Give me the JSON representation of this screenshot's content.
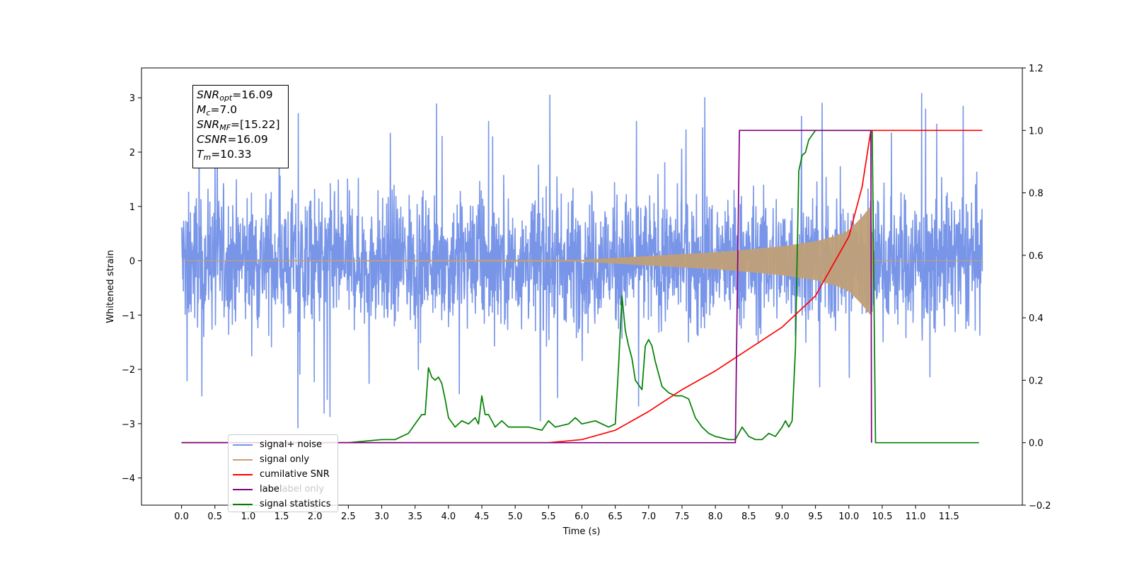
{
  "chart_data": {
    "type": "line",
    "xlabel": "Time (s)",
    "ylabel": "Whitened strain",
    "xlim": [
      -0.6,
      12.6
    ],
    "ylim_left": [
      -4.5,
      3.55
    ],
    "ylim_right": [
      -0.2,
      1.2
    ],
    "x_ticks": [
      0.0,
      0.5,
      1.0,
      1.5,
      2.0,
      2.5,
      3.0,
      3.5,
      4.0,
      4.5,
      5.0,
      5.5,
      6.0,
      6.5,
      7.0,
      7.5,
      8.0,
      8.5,
      9.0,
      9.5,
      10.0,
      10.5,
      11.0,
      11.5
    ],
    "x_tick_labels": [
      "0.0",
      "0.5",
      "1.0",
      "1.5",
      "2.0",
      "2.5",
      "3.0",
      "3.5",
      "4.0",
      "4.5",
      "5.0",
      "5.5",
      "6.0",
      "6.5",
      "7.0",
      "7.5",
      "8.0",
      "8.5",
      "9.0",
      "9.5",
      "10.0",
      "10.5",
      "11.0",
      "11.5"
    ],
    "y_ticks_left": [
      -4,
      -3,
      -2,
      -1,
      0,
      1,
      2,
      3
    ],
    "y_tick_labels_left": [
      "−4",
      "−3",
      "−2",
      "−1",
      "0",
      "1",
      "2",
      "3"
    ],
    "y_ticks_right": [
      -0.2,
      0.0,
      0.2,
      0.4,
      0.6,
      0.8,
      1.0,
      1.2
    ],
    "y_tick_labels_right": [
      "−0.2",
      "0.0",
      "0.2",
      "0.4",
      "0.6",
      "0.8",
      "1.0",
      "1.2"
    ],
    "grid": false,
    "legend_position": "lower-left",
    "annotation": [
      {
        "sym": "SNR",
        "sub": "opt",
        "value": "=16.09"
      },
      {
        "sym": "M",
        "sub": "c",
        "value": "=7.0"
      },
      {
        "sym": "SNR",
        "sub": "MF",
        "value": "=[15.22]"
      },
      {
        "sym": "CSNR",
        "sub": "",
        "value": "=16.09"
      },
      {
        "sym": "T",
        "sub": "m",
        "value": "=10.33"
      }
    ],
    "series": [
      {
        "name": "signal+ noise",
        "axis": "left",
        "color": "#7895e8",
        "style": "noise band, amplitude approx ±1.6 with spikes to about 3.2 and -4.1",
        "x_range": [
          0.0,
          12.0
        ]
      },
      {
        "name": "signal only",
        "axis": "left",
        "color": "#c8a070",
        "style": "chirp envelope",
        "x": [
          0.0,
          6.0,
          7.0,
          8.0,
          8.5,
          9.0,
          9.5,
          9.8,
          10.0,
          10.2,
          10.33,
          10.36,
          12.0
        ],
        "envelope": [
          0.0,
          0.01,
          0.08,
          0.15,
          0.2,
          0.26,
          0.35,
          0.45,
          0.55,
          0.8,
          1.0,
          0.0,
          0.0
        ]
      },
      {
        "name": "cumilative SNR",
        "axis": "right",
        "color": "#ff0000",
        "x": [
          0.0,
          5.5,
          6.0,
          6.5,
          7.0,
          7.5,
          8.0,
          8.5,
          9.0,
          9.5,
          10.0,
          10.2,
          10.33,
          12.0
        ],
        "y": [
          0.0,
          0.0,
          0.01,
          0.04,
          0.1,
          0.17,
          0.23,
          0.3,
          0.37,
          0.47,
          0.66,
          0.82,
          1.0,
          1.0
        ]
      },
      {
        "name": "label",
        "axis": "right",
        "color": "#800080",
        "x": [
          0.0,
          8.3,
          8.36,
          10.33,
          10.34,
          10.5,
          12.0
        ],
        "y": [
          0.0,
          0.0,
          1.0,
          1.0,
          0.0,
          0.0,
          0.0
        ],
        "drawn_x_range": [
          0.0,
          10.34
        ]
      },
      {
        "name": "label only",
        "axis": "right",
        "color": "#c8c8c8",
        "x": [],
        "y": []
      },
      {
        "name": "signal statistics",
        "axis": "right",
        "color": "#008000",
        "x": [
          0.0,
          2.5,
          3.0,
          3.2,
          3.4,
          3.5,
          3.6,
          3.65,
          3.7,
          3.75,
          3.8,
          3.85,
          3.9,
          3.95,
          4.0,
          4.1,
          4.2,
          4.3,
          4.4,
          4.45,
          4.5,
          4.55,
          4.6,
          4.7,
          4.8,
          4.9,
          5.0,
          5.2,
          5.4,
          5.5,
          5.6,
          5.8,
          5.9,
          6.0,
          6.2,
          6.3,
          6.4,
          6.5,
          6.55,
          6.6,
          6.65,
          6.7,
          6.75,
          6.8,
          6.9,
          6.95,
          7.0,
          7.05,
          7.1,
          7.2,
          7.3,
          7.4,
          7.5,
          7.6,
          7.7,
          7.8,
          7.9,
          8.0,
          8.2,
          8.3,
          8.4,
          8.5,
          8.6,
          8.7,
          8.8,
          8.9,
          9.0,
          9.05,
          9.1,
          9.15,
          9.2,
          9.25,
          9.3,
          9.35,
          9.4,
          9.5,
          9.6,
          9.7,
          9.8,
          10.0,
          10.2,
          10.3,
          10.35,
          10.4,
          10.5,
          11.0,
          12.0
        ],
        "y": [
          0.0,
          0.0,
          0.01,
          0.01,
          0.03,
          0.06,
          0.09,
          0.09,
          0.24,
          0.21,
          0.2,
          0.21,
          0.19,
          0.14,
          0.08,
          0.05,
          0.07,
          0.06,
          0.08,
          0.06,
          0.15,
          0.09,
          0.09,
          0.05,
          0.07,
          0.05,
          0.05,
          0.05,
          0.04,
          0.07,
          0.05,
          0.06,
          0.08,
          0.06,
          0.07,
          0.06,
          0.05,
          0.06,
          0.25,
          0.47,
          0.36,
          0.31,
          0.27,
          0.2,
          0.17,
          0.31,
          0.33,
          0.31,
          0.26,
          0.18,
          0.16,
          0.15,
          0.15,
          0.14,
          0.08,
          0.05,
          0.03,
          0.02,
          0.01,
          0.01,
          0.05,
          0.02,
          0.01,
          0.01,
          0.03,
          0.02,
          0.05,
          0.07,
          0.05,
          0.07,
          0.3,
          0.87,
          0.92,
          0.93,
          0.97,
          1.0,
          1.0,
          1.0,
          1.0,
          1.0,
          1.0,
          1.0,
          1.0,
          0.0,
          0.0,
          0.0,
          0.0
        ],
        "drawn_x_range": [
          0.0,
          11.95
        ]
      }
    ]
  }
}
